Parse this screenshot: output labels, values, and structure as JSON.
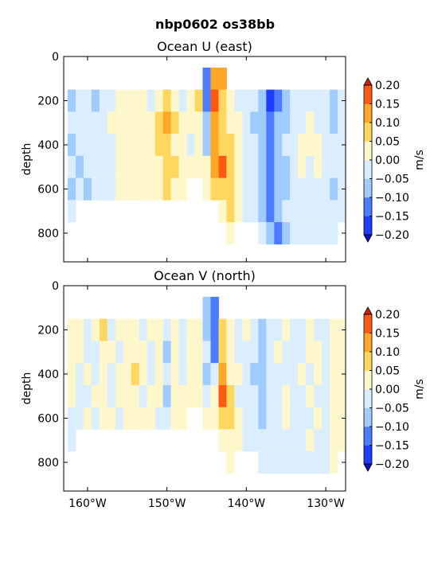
{
  "figure": {
    "suptitle": "nbp0602 os38bb"
  },
  "colorbar": {
    "levels": [
      -0.2,
      -0.15,
      -0.1,
      -0.05,
      0.0,
      0.05,
      0.1,
      0.15,
      0.2
    ],
    "tick_labels": [
      "0.20",
      "0.15",
      "0.10",
      "0.05",
      "0.00",
      "−0.05",
      "−0.10",
      "−0.15",
      "−0.20"
    ],
    "label": "m/s",
    "colors": [
      "#1f3fff",
      "#4c7cff",
      "#a0cbff",
      "#dbeeff",
      "#fff7cc",
      "#ffd75e",
      "#ffa726",
      "#ff5a14"
    ],
    "over_color": "#d01f0a",
    "under_color": "#1010c0"
  },
  "axes": {
    "xlabels": [
      "160°W",
      "150°W",
      "140°W",
      "130°W"
    ],
    "xticks": [
      -160,
      -150,
      -140,
      -130
    ],
    "xlim": [
      -163,
      -127.5
    ],
    "ylabel": "depth",
    "yticks": [
      0,
      200,
      400,
      600,
      800
    ],
    "ytick_labels": [
      "0",
      "200",
      "400",
      "600",
      "800"
    ],
    "ylim": [
      0,
      930
    ]
  },
  "chart_data": [
    {
      "type": "heatmap",
      "title": "Ocean U (east)",
      "xlabel": "",
      "ylabel": "depth",
      "units": "m/s",
      "x": [
        -162,
        -161,
        -160,
        -159,
        -158,
        -157,
        -156,
        -155,
        -154,
        -153,
        -152,
        -151,
        -150,
        -149,
        -148,
        -147,
        -146,
        -145,
        -144,
        -143,
        -142,
        -141,
        -140,
        -139,
        -138,
        -137,
        -136,
        -135,
        -134,
        -133,
        -132,
        -131,
        -130,
        -129,
        -128
      ],
      "y": [
        100,
        200,
        300,
        400,
        500,
        600,
        700,
        800
      ],
      "values": [
        [
          null,
          null,
          null,
          null,
          null,
          null,
          null,
          null,
          null,
          null,
          null,
          null,
          null,
          null,
          null,
          null,
          null,
          -0.1,
          0.15,
          0.12,
          null,
          null,
          null,
          null,
          null,
          null,
          null,
          null,
          null,
          null,
          null,
          null,
          null,
          null,
          null
        ],
        [
          -0.06,
          -0.04,
          -0.02,
          -0.05,
          -0.03,
          -0.01,
          0.02,
          0.03,
          0.02,
          0.01,
          0.0,
          0.03,
          0.08,
          0.04,
          -0.02,
          0.01,
          0.06,
          -0.12,
          0.16,
          0.08,
          0.03,
          -0.02,
          -0.02,
          -0.04,
          -0.08,
          -0.18,
          -0.1,
          -0.06,
          -0.03,
          -0.01,
          -0.02,
          -0.03,
          -0.04,
          -0.06,
          -0.02
        ],
        [
          -0.04,
          -0.02,
          -0.03,
          -0.02,
          -0.04,
          0.01,
          0.02,
          0.02,
          0.03,
          0.02,
          0.04,
          0.06,
          0.13,
          0.07,
          0.03,
          0.02,
          0.05,
          -0.08,
          0.14,
          0.07,
          0.04,
          0.01,
          -0.03,
          -0.05,
          -0.08,
          -0.12,
          -0.08,
          -0.05,
          -0.02,
          0.0,
          0.02,
          -0.02,
          -0.03,
          -0.05,
          -0.03
        ],
        [
          -0.05,
          -0.03,
          -0.02,
          -0.04,
          -0.02,
          0.0,
          0.01,
          0.03,
          0.02,
          0.04,
          0.02,
          0.07,
          0.09,
          0.05,
          0.02,
          -0.01,
          0.03,
          -0.05,
          0.12,
          0.06,
          0.06,
          0.02,
          -0.02,
          -0.04,
          -0.06,
          -0.1,
          -0.09,
          -0.04,
          -0.03,
          0.01,
          0.02,
          0.03,
          -0.03,
          -0.04,
          -0.02
        ],
        [
          -0.03,
          -0.05,
          -0.03,
          -0.02,
          -0.03,
          -0.01,
          0.02,
          0.03,
          0.04,
          0.03,
          0.05,
          0.04,
          0.08,
          0.06,
          0.01,
          0.02,
          0.02,
          0.03,
          0.11,
          0.2,
          0.09,
          0.03,
          -0.01,
          -0.03,
          -0.05,
          -0.12,
          -0.08,
          -0.06,
          -0.02,
          0.01,
          0.0,
          0.02,
          -0.02,
          -0.03,
          -0.04
        ],
        [
          -0.06,
          -0.04,
          -0.05,
          -0.03,
          -0.02,
          -0.02,
          0.01,
          0.02,
          0.02,
          0.01,
          0.03,
          0.05,
          0.07,
          0.04,
          0.03,
          null,
          null,
          0.05,
          0.08,
          0.1,
          0.07,
          0.02,
          -0.02,
          -0.04,
          -0.07,
          -0.11,
          -0.09,
          -0.05,
          -0.03,
          -0.02,
          -0.01,
          -0.03,
          -0.04,
          -0.05,
          -0.03
        ],
        [
          -0.04,
          null,
          null,
          null,
          null,
          null,
          null,
          null,
          null,
          null,
          null,
          null,
          null,
          null,
          null,
          null,
          null,
          null,
          null,
          0.05,
          0.06,
          0.03,
          -0.02,
          -0.03,
          -0.05,
          -0.1,
          -0.08,
          -0.04,
          -0.02,
          -0.01,
          -0.02,
          -0.03,
          -0.04,
          -0.04,
          -0.03
        ],
        [
          null,
          null,
          null,
          null,
          null,
          null,
          null,
          null,
          null,
          null,
          null,
          null,
          null,
          null,
          null,
          null,
          null,
          null,
          null,
          null,
          0.03,
          null,
          null,
          null,
          -0.04,
          -0.08,
          -0.14,
          -0.06,
          -0.03,
          -0.02,
          -0.02,
          -0.03,
          -0.03,
          -0.04,
          null
        ]
      ]
    },
    {
      "type": "heatmap",
      "title": "Ocean V (north)",
      "xlabel": "",
      "ylabel": "depth",
      "units": "m/s",
      "x": [
        -162,
        -161,
        -160,
        -159,
        -158,
        -157,
        -156,
        -155,
        -154,
        -153,
        -152,
        -151,
        -150,
        -149,
        -148,
        -147,
        -146,
        -145,
        -144,
        -143,
        -142,
        -141,
        -140,
        -139,
        -138,
        -137,
        -136,
        -135,
        -134,
        -133,
        -132,
        -131,
        -130,
        -129,
        -128
      ],
      "y": [
        100,
        200,
        300,
        400,
        500,
        600,
        700,
        800
      ],
      "values": [
        [
          null,
          null,
          null,
          null,
          null,
          null,
          null,
          null,
          null,
          null,
          null,
          null,
          null,
          null,
          null,
          null,
          null,
          -0.08,
          -0.12,
          null,
          null,
          null,
          null,
          null,
          null,
          null,
          null,
          null,
          null,
          null,
          null,
          null,
          null,
          null,
          null
        ],
        [
          0.02,
          0.03,
          -0.04,
          0.02,
          0.06,
          -0.03,
          0.02,
          0.04,
          0.02,
          -0.02,
          0.03,
          0.05,
          -0.03,
          0.02,
          -0.02,
          0.03,
          0.01,
          -0.06,
          -0.14,
          0.07,
          0.03,
          -0.02,
          0.02,
          -0.03,
          -0.05,
          -0.04,
          -0.03,
          0.02,
          -0.02,
          -0.04,
          0.01,
          -0.02,
          -0.03,
          0.02,
          0.01
        ],
        [
          0.01,
          0.02,
          -0.02,
          -0.04,
          0.03,
          0.01,
          -0.02,
          0.02,
          0.03,
          0.05,
          -0.03,
          0.02,
          -0.06,
          0.03,
          -0.03,
          0.02,
          0.03,
          -0.03,
          -0.1,
          0.08,
          0.04,
          -0.02,
          -0.01,
          -0.04,
          -0.06,
          -0.03,
          0.01,
          -0.02,
          -0.03,
          -0.02,
          0.02,
          0.01,
          -0.04,
          0.02,
          0.02
        ],
        [
          0.02,
          -0.02,
          0.03,
          -0.03,
          0.02,
          -0.02,
          0.01,
          0.04,
          0.06,
          0.02,
          -0.02,
          0.03,
          -0.04,
          0.02,
          -0.04,
          0.03,
          0.02,
          -0.05,
          -0.04,
          0.12,
          0.05,
          0.01,
          -0.02,
          -0.05,
          -0.07,
          -0.04,
          -0.02,
          -0.02,
          -0.04,
          0.01,
          -0.02,
          0.02,
          -0.03,
          0.02,
          0.03
        ],
        [
          0.01,
          -0.03,
          -0.02,
          0.02,
          0.03,
          -0.02,
          0.02,
          0.03,
          0.02,
          -0.03,
          0.02,
          0.04,
          -0.05,
          0.02,
          0.01,
          0.05,
          0.03,
          -0.02,
          0.04,
          0.16,
          0.06,
          -0.01,
          -0.03,
          -0.04,
          -0.06,
          -0.03,
          -0.03,
          0.02,
          -0.02,
          -0.03,
          0.01,
          -0.02,
          -0.02,
          0.03,
          0.02
        ],
        [
          -0.03,
          -0.02,
          0.02,
          -0.02,
          0.01,
          0.02,
          -0.02,
          0.01,
          0.02,
          0.03,
          0.02,
          -0.03,
          -0.02,
          0.01,
          0.05,
          null,
          null,
          0.03,
          0.04,
          0.1,
          0.07,
          0.02,
          -0.02,
          -0.04,
          -0.05,
          -0.03,
          -0.02,
          0.01,
          -0.03,
          -0.02,
          -0.01,
          0.02,
          -0.02,
          0.02,
          0.03
        ],
        [
          -0.02,
          null,
          null,
          null,
          null,
          null,
          null,
          null,
          null,
          null,
          null,
          null,
          null,
          null,
          null,
          null,
          null,
          null,
          null,
          0.04,
          0.05,
          0.02,
          -0.02,
          -0.03,
          -0.04,
          -0.02,
          -0.02,
          -0.01,
          -0.03,
          -0.02,
          0.01,
          -0.02,
          -0.02,
          0.02,
          0.02
        ],
        [
          null,
          null,
          null,
          null,
          null,
          null,
          null,
          null,
          null,
          null,
          null,
          null,
          null,
          null,
          null,
          null,
          null,
          null,
          null,
          null,
          0.02,
          null,
          null,
          null,
          -0.03,
          -0.02,
          -0.03,
          -0.02,
          -0.02,
          -0.01,
          -0.02,
          -0.02,
          -0.02,
          0.02,
          null
        ]
      ]
    }
  ]
}
